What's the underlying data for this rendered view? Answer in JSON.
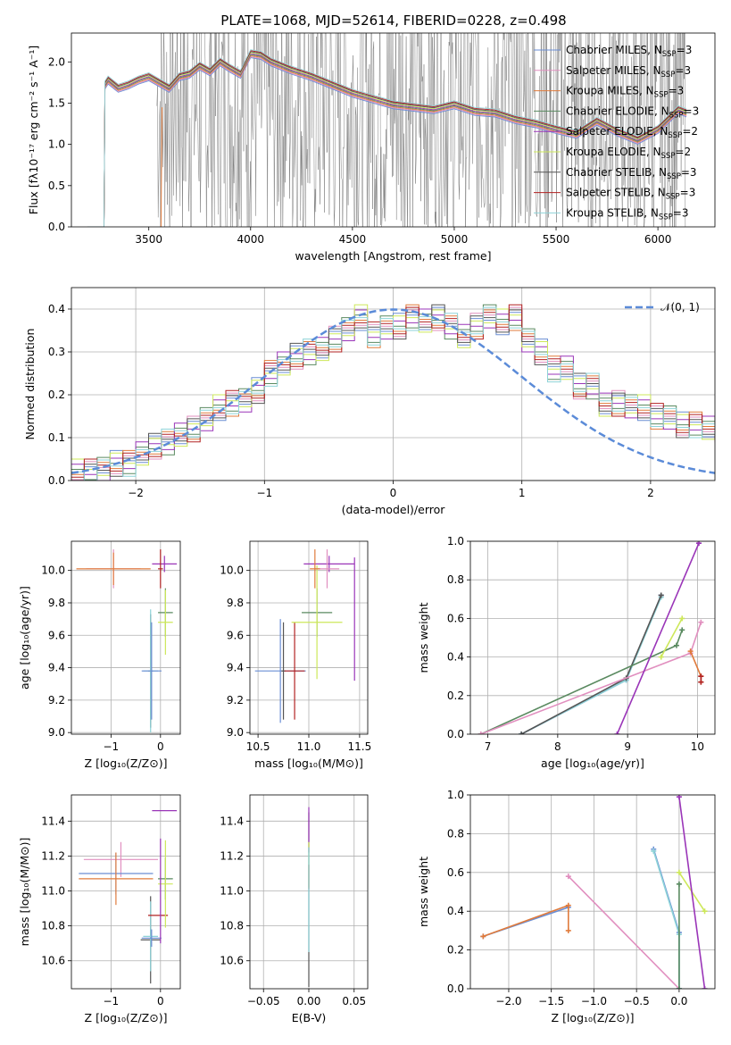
{
  "title": "PLATE=1068, MJD=52614, FIBERID=0228, z=0.498",
  "legend": [
    {
      "name": "Chabrier MILES, N",
      "sub": "SSP",
      "tail": "=3",
      "color": "#6a8ed4"
    },
    {
      "name": "Salpeter MILES, N",
      "sub": "SSP",
      "tail": "=3",
      "color": "#e18fbf"
    },
    {
      "name": "Kroupa MILES, N",
      "sub": "SSP",
      "tail": "=3",
      "color": "#e07b3c"
    },
    {
      "name": "Chabrier ELODIE, N",
      "sub": "SSP",
      "tail": "=3",
      "color": "#5a8a60"
    },
    {
      "name": "Salpeter ELODIE, N",
      "sub": "SSP",
      "tail": "=2",
      "color": "#9a35b8"
    },
    {
      "name": "Kroupa ELODIE, N",
      "sub": "SSP",
      "tail": "=2",
      "color": "#cde85a"
    },
    {
      "name": "Chabrier STELIB, N",
      "sub": "SSP",
      "tail": "=3",
      "color": "#555555"
    },
    {
      "name": "Salpeter STELIB, N",
      "sub": "SSP",
      "tail": "=3",
      "color": "#b22222"
    },
    {
      "name": "Kroupa STELIB, N",
      "sub": "SSP",
      "tail": "=3",
      "color": "#8ed3d8"
    }
  ],
  "normal_label": "𝒩(0, 1)",
  "chart_data": [
    {
      "id": "spectrum",
      "type": "line",
      "xlabel": "wavelength [Angstrom, rest frame]",
      "ylabel": "Flux [fλ10⁻¹⁷ erg cm⁻² s⁻¹ A⁻¹]",
      "xlim": [
        3120,
        6280
      ],
      "ylim": [
        0,
        2.35
      ],
      "xticks": [
        3500,
        4000,
        4500,
        5000,
        5500,
        6000
      ],
      "yticks": [
        0.0,
        0.5,
        1.0,
        1.5,
        2.0
      ],
      "model_wave": [
        3285,
        3300,
        3350,
        3400,
        3450,
        3500,
        3550,
        3600,
        3650,
        3700,
        3750,
        3800,
        3850,
        3900,
        3950,
        4000,
        4050,
        4100,
        4150,
        4200,
        4300,
        4400,
        4500,
        4600,
        4700,
        4800,
        4900,
        5000,
        5100,
        5200,
        5300,
        5400,
        5500,
        5600,
        5700,
        5800,
        5900,
        6000,
        6100,
        6140
      ],
      "model_flux": [
        1.72,
        1.78,
        1.68,
        1.72,
        1.78,
        1.82,
        1.75,
        1.68,
        1.82,
        1.85,
        1.95,
        1.88,
        2.0,
        1.92,
        1.85,
        2.1,
        2.08,
        2.0,
        1.95,
        1.9,
        1.82,
        1.72,
        1.62,
        1.55,
        1.48,
        1.45,
        1.42,
        1.48,
        1.4,
        1.38,
        1.3,
        1.25,
        1.18,
        1.12,
        1.28,
        1.15,
        1.05,
        1.18,
        1.42,
        1.38
      ]
    },
    {
      "id": "residuals",
      "type": "bar",
      "xlabel": "(data-model)/error",
      "ylabel": "Normed distribution",
      "xlim": [
        -2.5,
        2.5
      ],
      "ylim": [
        0,
        0.45
      ],
      "xticks": [
        -2,
        -1,
        0,
        1,
        2
      ],
      "yticks": [
        0.0,
        0.1,
        0.2,
        0.3,
        0.4
      ],
      "bin_width": 0.1,
      "bin_start": -2.5,
      "hist": [
        0.02,
        0.02,
        0.03,
        0.04,
        0.04,
        0.06,
        0.08,
        0.09,
        0.11,
        0.12,
        0.14,
        0.17,
        0.18,
        0.19,
        0.21,
        0.25,
        0.27,
        0.29,
        0.3,
        0.31,
        0.33,
        0.35,
        0.38,
        0.34,
        0.36,
        0.36,
        0.38,
        0.37,
        0.38,
        0.36,
        0.34,
        0.36,
        0.38,
        0.37,
        0.38,
        0.33,
        0.3,
        0.26,
        0.26,
        0.22,
        0.22,
        0.18,
        0.18,
        0.17,
        0.17,
        0.15,
        0.15,
        0.13,
        0.13,
        0.12,
        0.12,
        0.1,
        0.1,
        0.09,
        0.09,
        0.07,
        0.07,
        0.05,
        0.05,
        0.04
      ]
    },
    {
      "id": "age-vs-z",
      "type": "scatter",
      "xlabel": "Z [log₁₀(Z/Z⊙)]",
      "ylabel": "age  [log₁₀(age/yr)]",
      "xlim": [
        -1.8,
        0.4
      ],
      "ylim": [
        8.99,
        10.18
      ],
      "xticks": [
        -1,
        0
      ],
      "yticks": [
        9.0,
        9.2,
        9.4,
        9.6,
        9.8,
        10.0
      ],
      "points": [
        {
          "x": -0.2,
          "y": 9.38,
          "xe": 0.05,
          "ye": 0.35,
          "c": 6
        },
        {
          "x": -0.2,
          "y": 9.38,
          "xe": 0.15,
          "ye": 0.38,
          "c": 8
        },
        {
          "x": -0.18,
          "y": 9.38,
          "xe": 0.2,
          "ye": 0.3,
          "c": 0
        },
        {
          "x": 0.1,
          "y": 9.74,
          "xe": 0.15,
          "ye": 0.15,
          "c": 3
        },
        {
          "x": 0.1,
          "y": 9.68,
          "xe": 0.15,
          "ye": 0.2,
          "c": 5
        },
        {
          "x": 0.08,
          "y": 10.04,
          "xe": 0.25,
          "ye": 0.05,
          "c": 4
        },
        {
          "x": -0.95,
          "y": 10.01,
          "xe": 0.55,
          "ye": 0.12,
          "c": 1
        },
        {
          "x": -0.95,
          "y": 10.01,
          "xe": 0.75,
          "ye": 0.1,
          "c": 2
        },
        {
          "x": 0.0,
          "y": 10.01,
          "xe": 0.05,
          "ye": 0.12,
          "c": 7
        }
      ]
    },
    {
      "id": "age-vs-mass",
      "type": "scatter",
      "xlabel": "mass [log₁₀(M/M⊙)]",
      "ylabel": "",
      "xlim": [
        10.42,
        11.58
      ],
      "ylim": [
        8.99,
        10.18
      ],
      "xticks": [
        10.5,
        11.0,
        11.5
      ],
      "yticks": [
        9.0,
        9.2,
        9.4,
        9.6,
        9.8,
        10.0
      ],
      "points": [
        {
          "x": 10.72,
          "y": 9.38,
          "xe": 0.25,
          "ye": 0.32,
          "c": 0
        },
        {
          "x": 10.75,
          "y": 9.38,
          "xe": 0.02,
          "ye": 0.3,
          "c": 6
        },
        {
          "x": 10.86,
          "y": 9.38,
          "xe": 0.1,
          "ye": 0.3,
          "c": 7
        },
        {
          "x": 11.08,
          "y": 9.74,
          "xe": 0.15,
          "ye": 0.15,
          "c": 3
        },
        {
          "x": 11.08,
          "y": 9.68,
          "xe": 0.25,
          "ye": 0.35,
          "c": 5
        },
        {
          "x": 11.2,
          "y": 10.04,
          "xe": 0.25,
          "ye": 0.05,
          "c": 4
        },
        {
          "x": 11.18,
          "y": 10.01,
          "xe": 0.12,
          "ye": 0.12,
          "c": 1
        },
        {
          "x": 11.06,
          "y": 10.01,
          "xe": 0.05,
          "ye": 0.12,
          "c": 2
        },
        {
          "x": 11.45,
          "y": 9.7,
          "xe": 0.0,
          "ye": 0.38,
          "c": 4
        }
      ]
    },
    {
      "id": "weight-vs-age",
      "type": "line",
      "xlabel": "age  [log₁₀(age/yr)]",
      "ylabel": "mass weight",
      "xlim": [
        6.75,
        10.25
      ],
      "ylim": [
        0,
        1.0
      ],
      "xticks": [
        7,
        8,
        9,
        10
      ],
      "yticks": [
        0.0,
        0.2,
        0.4,
        0.6,
        0.8,
        1.0
      ],
      "series": [
        {
          "c": 0,
          "x": [
            7.48,
            8.98,
            9.48
          ],
          "y": [
            0.0,
            0.28,
            0.72
          ]
        },
        {
          "c": 8,
          "x": [
            7.48,
            8.98,
            9.48
          ],
          "y": [
            0.0,
            0.28,
            0.71
          ]
        },
        {
          "c": 6,
          "x": [
            7.48,
            8.98,
            9.48
          ],
          "y": [
            0.0,
            0.29,
            0.72
          ]
        },
        {
          "c": 3,
          "x": [
            6.9,
            9.7,
            9.78
          ],
          "y": [
            0.0,
            0.46,
            0.54
          ]
        },
        {
          "c": 1,
          "x": [
            6.9,
            9.9,
            10.05
          ],
          "y": [
            0.0,
            0.42,
            0.58
          ]
        },
        {
          "c": 2,
          "x": [
            9.9,
            10.05,
            10.05
          ],
          "y": [
            0.43,
            0.3,
            0.27
          ]
        },
        {
          "c": 5,
          "x": [
            9.48,
            9.78
          ],
          "y": [
            0.4,
            0.6
          ]
        },
        {
          "c": 4,
          "x": [
            8.85,
            10.02
          ],
          "y": [
            0.0,
            0.99
          ]
        },
        {
          "c": 7,
          "x": [
            10.05,
            10.05
          ],
          "y": [
            0.27,
            0.3
          ]
        }
      ]
    },
    {
      "id": "mass-vs-z",
      "type": "scatter",
      "xlabel": "Z [log₁₀(Z/Z⊙)]",
      "ylabel": "mass [log₁₀(M/M⊙)]",
      "xlim": [
        -1.8,
        0.4
      ],
      "ylim": [
        10.44,
        11.55
      ],
      "xticks": [
        -1,
        0
      ],
      "yticks": [
        10.6,
        10.8,
        11.0,
        11.2,
        11.4
      ],
      "points": [
        {
          "x": -0.2,
          "y": 10.72,
          "xe": 0.2,
          "ye": 0.25,
          "c": 6
        },
        {
          "x": -0.2,
          "y": 10.74,
          "xe": 0.15,
          "ye": 0.2,
          "c": 8
        },
        {
          "x": -0.18,
          "y": 10.73,
          "xe": 0.2,
          "ye": 0.05,
          "c": 0
        },
        {
          "x": -0.05,
          "y": 10.86,
          "xe": 0.2,
          "ye": 0.0,
          "c": 7
        },
        {
          "x": 0.1,
          "y": 11.07,
          "xe": 0.15,
          "ye": 0.12,
          "c": 3
        },
        {
          "x": 0.1,
          "y": 11.04,
          "xe": 0.15,
          "ye": 0.25,
          "c": 5
        },
        {
          "x": 0.08,
          "y": 11.46,
          "xe": 0.25,
          "ye": 0.0,
          "c": 4
        },
        {
          "x": -0.8,
          "y": 11.18,
          "xe": 0.75,
          "ye": 0.1,
          "c": 1
        },
        {
          "x": -0.9,
          "y": 11.1,
          "xe": 0.75,
          "ye": 0.12,
          "c": 0
        },
        {
          "x": -0.9,
          "y": 11.07,
          "xe": 0.75,
          "ye": 0.15,
          "c": 2
        },
        {
          "x": 0.0,
          "y": 11.0,
          "xe": 0.0,
          "ye": 0.3,
          "c": 4
        }
      ]
    },
    {
      "id": "mass-vs-ebv",
      "type": "scatter",
      "xlabel": "E(B-V)",
      "ylabel": "",
      "xlim": [
        -0.065,
        0.065
      ],
      "ylim": [
        10.44,
        11.55
      ],
      "xticks": [
        -0.05,
        0.0,
        0.05
      ],
      "yticks": [
        10.6,
        10.8,
        11.0,
        11.2,
        11.4
      ],
      "points": [
        {
          "x": 0.0,
          "y": 10.95,
          "xe": 0.0,
          "ye": 0.5,
          "c": 6
        },
        {
          "x": 0.0,
          "y": 11.35,
          "xe": 0.0,
          "ye": 0.13,
          "c": 4
        },
        {
          "x": 0.0,
          "y": 11.15,
          "xe": 0.0,
          "ye": 0.13,
          "c": 5
        },
        {
          "x": 0.0,
          "y": 11.08,
          "xe": 0.0,
          "ye": 0.07,
          "c": 7
        },
        {
          "x": 0.0,
          "y": 10.95,
          "xe": 0.0,
          "ye": 0.3,
          "c": 8
        }
      ]
    },
    {
      "id": "weight-vs-z",
      "type": "line",
      "xlabel": "Z [log₁₀(Z/Z⊙)]",
      "ylabel": "mass weight",
      "xlim": [
        -2.45,
        0.42
      ],
      "ylim": [
        0,
        1.0
      ],
      "xticks": [
        -2.0,
        -1.5,
        -1.0,
        -0.5,
        0.0
      ],
      "yticks": [
        0.0,
        0.2,
        0.4,
        0.6,
        0.8,
        1.0
      ],
      "series": [
        {
          "c": 0,
          "x": [
            -2.3,
            -1.3
          ],
          "y": [
            0.27,
            0.42
          ]
        },
        {
          "c": 2,
          "x": [
            -2.3,
            -1.3,
            -1.3
          ],
          "y": [
            0.27,
            0.43,
            0.3
          ]
        },
        {
          "c": 1,
          "x": [
            -1.3,
            0.0,
            0.0
          ],
          "y": [
            0.58,
            0.0,
            0.0
          ]
        },
        {
          "c": 0,
          "x": [
            -0.3,
            0.0,
            0.0
          ],
          "y": [
            0.72,
            0.29,
            0.0
          ]
        },
        {
          "c": 8,
          "x": [
            -0.3,
            0.0,
            0.0
          ],
          "y": [
            0.71,
            0.28,
            0.0
          ]
        },
        {
          "c": 3,
          "x": [
            0.0,
            0.0
          ],
          "y": [
            0.0,
            0.54
          ]
        },
        {
          "c": 5,
          "x": [
            0.0,
            0.3
          ],
          "y": [
            0.6,
            0.4
          ]
        },
        {
          "c": 4,
          "x": [
            0.0,
            0.3
          ],
          "y": [
            0.99,
            0.0
          ]
        }
      ]
    }
  ]
}
